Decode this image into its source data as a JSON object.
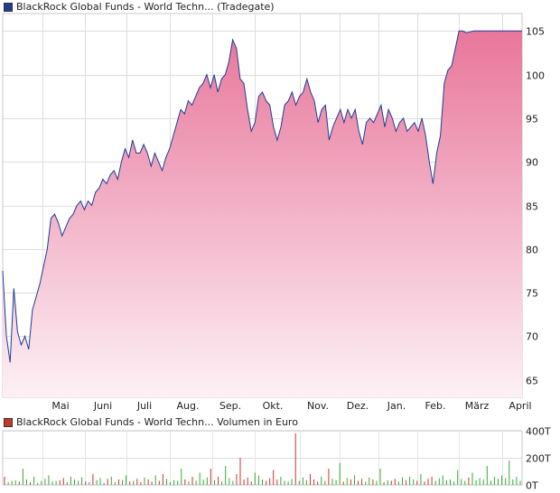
{
  "chart_data": [
    {
      "type": "area",
      "legend": "BlackRock Global Funds - World Techn... (Tradegate)",
      "color": "#1f3c99",
      "fill_top": "#e8769b",
      "fill_bottom": "#fdf1f5",
      "ylim": [
        63,
        107
      ],
      "y_ticks": [
        65,
        70,
        75,
        80,
        85,
        90,
        95,
        100,
        105
      ],
      "grid": true,
      "month_labels": [
        "Mai",
        "Juni",
        "Juli",
        "Aug.",
        "Sep.",
        "Okt.",
        "Nov.",
        "Dez.",
        "Jan.",
        "Feb.",
        "März",
        "April"
      ],
      "x": [
        0,
        1,
        2,
        3,
        4,
        5,
        6,
        7,
        8,
        9,
        10,
        11,
        12,
        13,
        14,
        15,
        16,
        17,
        18,
        19,
        20,
        21,
        22,
        23,
        24,
        25,
        26,
        27,
        28,
        29,
        30,
        31,
        32,
        33,
        34,
        35,
        36,
        37,
        38,
        39,
        40,
        41,
        42,
        43,
        44,
        45,
        46,
        47,
        48,
        49,
        50,
        51,
        52,
        53,
        54,
        55,
        56,
        57,
        58,
        59,
        60,
        61,
        62,
        63,
        64,
        65,
        66,
        67,
        68,
        69,
        70,
        71,
        72,
        73,
        74,
        75,
        76,
        77,
        78,
        79,
        80,
        81,
        82,
        83,
        84,
        85,
        86,
        87,
        88,
        89,
        90,
        91,
        92,
        93,
        94,
        95,
        96,
        97,
        98,
        99,
        100,
        101,
        102,
        103,
        104,
        105,
        106,
        107,
        108,
        109,
        110,
        111,
        112,
        113,
        114,
        115,
        116,
        117,
        118,
        119,
        120,
        121,
        122,
        123,
        124,
        125,
        126,
        127,
        128,
        129,
        130,
        131,
        132,
        133,
        134,
        135,
        136,
        137,
        138,
        139,
        140
      ],
      "values": [
        77.5,
        70,
        67,
        75.5,
        70.5,
        69,
        70,
        68.5,
        73,
        74.5,
        76,
        78,
        80,
        83.5,
        84,
        83,
        81.5,
        82.5,
        83.5,
        84,
        85,
        85.5,
        84.5,
        85.5,
        85,
        86.5,
        87,
        88,
        87.5,
        88.5,
        89,
        88,
        90,
        91.5,
        90.5,
        92.5,
        91,
        91,
        92,
        91,
        89.5,
        91,
        90,
        89,
        90.5,
        91.5,
        93,
        94.5,
        96,
        95.5,
        97,
        96.5,
        97.5,
        98.5,
        99,
        100,
        98.5,
        100,
        98,
        99.5,
        100,
        101.5,
        104,
        103,
        99.5,
        99,
        96,
        93.5,
        94.5,
        97.5,
        98,
        97,
        96.5,
        94,
        92.5,
        94,
        96.5,
        97,
        98,
        96.5,
        97.5,
        98,
        99.5,
        98,
        97,
        94.5,
        96,
        96.5,
        92.5,
        94,
        95,
        96,
        94.5,
        96,
        95,
        96,
        93.5,
        92,
        94.5,
        95,
        94.5,
        95.5,
        96.5,
        94,
        96,
        95,
        93.5,
        94.5,
        95,
        93.5,
        94,
        94.5,
        93.5,
        95,
        93,
        90,
        87.5,
        91,
        93,
        99,
        100.5,
        101,
        103,
        105,
        105,
        104.8,
        104.9,
        105,
        105,
        105,
        105,
        105,
        105,
        105,
        105,
        105,
        105,
        105,
        105,
        105,
        105
      ]
    },
    {
      "type": "bar",
      "legend": "BlackRock Global Funds - World Techn... Volumen in Euro",
      "color": "#c0392b",
      "up_color": "#33aa33",
      "down_color": "#cc3333",
      "ylim": [
        0,
        400
      ],
      "y_ticks": [
        "0T",
        "200T",
        "400T"
      ],
      "grid": true,
      "values": [
        60,
        20,
        30,
        35,
        25,
        120,
        40,
        20,
        60,
        15,
        30,
        45,
        70,
        25,
        30,
        35,
        50,
        20,
        60,
        40,
        30,
        55,
        25,
        20,
        80,
        35,
        50,
        15,
        45,
        60,
        20,
        40,
        35,
        70,
        25,
        30,
        45,
        20,
        55,
        40,
        25,
        70,
        30,
        80,
        45,
        20,
        35,
        30,
        120,
        40,
        25,
        60,
        30,
        90,
        40,
        55,
        120,
        35,
        60,
        25,
        140,
        50,
        30,
        80,
        200,
        40,
        55,
        25,
        90,
        70,
        40,
        30,
        50,
        110,
        40,
        60,
        30,
        25,
        45,
        380,
        30,
        55,
        35,
        80,
        40,
        25,
        60,
        30,
        120,
        45,
        35,
        160,
        25,
        50,
        40,
        70,
        30,
        45,
        25,
        55,
        40,
        30,
        120,
        20,
        35,
        30,
        45,
        25,
        55,
        35,
        60,
        40,
        30,
        80,
        25,
        45,
        60,
        30,
        50,
        70,
        35,
        40,
        25,
        110,
        45,
        30,
        55,
        90,
        35,
        50,
        40,
        140,
        30,
        60,
        45,
        70,
        50,
        180,
        40,
        60,
        30
      ],
      "directions": [
        "d",
        "u",
        "u",
        "u",
        "d",
        "u",
        "u",
        "d",
        "u",
        "u",
        "u",
        "u",
        "u",
        "u",
        "u",
        "d",
        "d",
        "u",
        "u",
        "u",
        "u",
        "u",
        "d",
        "u",
        "d",
        "u",
        "u",
        "u",
        "d",
        "u",
        "u",
        "d",
        "u",
        "u",
        "d",
        "u",
        "d",
        "d",
        "u",
        "d",
        "d",
        "u",
        "d",
        "d",
        "u",
        "u",
        "u",
        "u",
        "u",
        "d",
        "u",
        "d",
        "u",
        "u",
        "u",
        "u",
        "d",
        "u",
        "d",
        "u",
        "u",
        "u",
        "u",
        "d",
        "d",
        "d",
        "d",
        "d",
        "u",
        "u",
        "u",
        "d",
        "d",
        "d",
        "d",
        "u",
        "u",
        "u",
        "u",
        "d",
        "u",
        "u",
        "u",
        "d",
        "d",
        "d",
        "u",
        "u",
        "d",
        "u",
        "u",
        "u",
        "d",
        "u",
        "d",
        "u",
        "d",
        "d",
        "u",
        "u",
        "d",
        "u",
        "u",
        "d",
        "u",
        "d",
        "d",
        "u",
        "u",
        "d",
        "u",
        "u",
        "d",
        "u",
        "d",
        "d",
        "d",
        "u",
        "u",
        "u",
        "u",
        "u",
        "u",
        "u",
        "u",
        "u",
        "d",
        "u",
        "u",
        "u",
        "u",
        "u",
        "u",
        "u",
        "u",
        "u",
        "u",
        "u",
        "u",
        "u",
        "u"
      ]
    }
  ]
}
